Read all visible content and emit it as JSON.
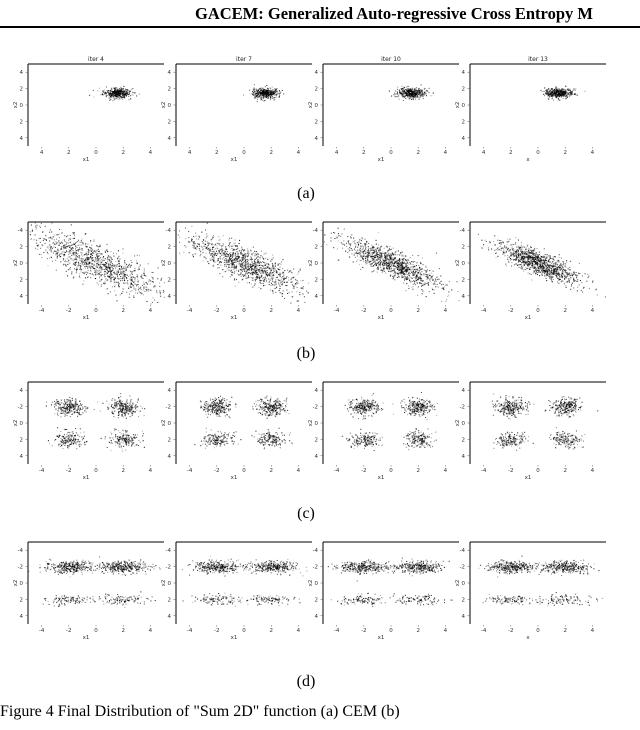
{
  "header": {
    "title": "GACEM: Generalized Auto-regressive Cross Entropy M"
  },
  "figure": {
    "caption": "Figure 4 Final Distribution of \"Sum 2D\" function (a) CEM (b)",
    "columns": [
      {
        "title": "iter 4"
      },
      {
        "title": "iter 7"
      },
      {
        "title": "iter 10"
      },
      {
        "title": "iter 13"
      }
    ],
    "rows": [
      {
        "label": "(a)",
        "xlabels": [
          "x1",
          "x1",
          "x1",
          "x"
        ],
        "ylabels": [
          "x2",
          "x2",
          "x2",
          "x2"
        ],
        "xticks": [
          "4",
          "2",
          "0",
          "2",
          "4"
        ],
        "yticks": [
          "4",
          "2",
          "0",
          "2",
          "4"
        ],
        "show_titles": true
      },
      {
        "label": "(b)",
        "xlabels": [
          "x1",
          "x1",
          "x1",
          "x1"
        ],
        "ylabels": [
          "x2",
          "x2",
          "x2",
          "x2"
        ],
        "xticks": [
          "-4",
          "-2",
          "0",
          "2",
          "4"
        ],
        "yticks": [
          "4",
          "2",
          "0",
          "2",
          "-4"
        ],
        "show_titles": false
      },
      {
        "label": "(c)",
        "xlabels": [
          "x1",
          "x1",
          "x1",
          "x1"
        ],
        "ylabels": [
          "x2",
          "x2",
          "x2",
          "x2"
        ],
        "xticks": [
          "-4",
          "-2",
          "0",
          "2",
          "4"
        ],
        "yticks": [
          "4",
          "2",
          "0",
          "-2",
          "4"
        ],
        "show_titles": false
      },
      {
        "label": "(d)",
        "xlabels": [
          "x1",
          "x1",
          "x1",
          "x"
        ],
        "ylabels": [
          "x2",
          "x2",
          "x2",
          "x2"
        ],
        "xticks": [
          "-4",
          "-2",
          "0",
          "2",
          "4"
        ],
        "yticks": [
          "4",
          "2",
          "0",
          "-2",
          "-4"
        ],
        "show_titles": false
      }
    ]
  },
  "chart_data": [
    {
      "type": "scatter",
      "row": "(a)",
      "xlim": [
        -5,
        5
      ],
      "ylim": [
        -5,
        5
      ],
      "clusters": [
        {
          "x": 1.5,
          "y": 1.5,
          "sx": 0.5,
          "sy": 0.3,
          "rho": 0,
          "n": 420
        }
      ]
    },
    {
      "type": "scatter",
      "row": "(b)",
      "xlim": [
        -5,
        5
      ],
      "ylim": [
        -5,
        5
      ],
      "clusters": [
        {
          "x": 0.0,
          "y": 0.0,
          "sx": 2.4,
          "sy": 2.0,
          "rho": -0.82,
          "n": 1100
        }
      ],
      "focus_per_iteration": [
        1.0,
        0.85,
        0.72,
        0.62
      ]
    },
    {
      "type": "scatter",
      "row": "(c)",
      "xlim": [
        -5,
        5
      ],
      "ylim": [
        -5,
        5
      ],
      "clusters": [
        {
          "x": -2,
          "y": 2,
          "sx": 0.55,
          "sy": 0.5,
          "rho": 0,
          "n": 260
        },
        {
          "x": 2,
          "y": 2,
          "sx": 0.55,
          "sy": 0.5,
          "rho": 0,
          "n": 260
        },
        {
          "x": -2,
          "y": -2,
          "sx": 0.55,
          "sy": 0.5,
          "rho": 0,
          "n": 170
        },
        {
          "x": 2,
          "y": -2,
          "sx": 0.55,
          "sy": 0.5,
          "rho": 0,
          "n": 170
        }
      ]
    },
    {
      "type": "scatter",
      "row": "(d)",
      "xlim": [
        -5,
        5
      ],
      "ylim": [
        -5,
        5
      ],
      "clusters": [
        {
          "x": -2,
          "y": 2,
          "sx": 0.9,
          "sy": 0.35,
          "rho": 0,
          "n": 320
        },
        {
          "x": 2,
          "y": 2,
          "sx": 0.9,
          "sy": 0.35,
          "rho": 0,
          "n": 320
        },
        {
          "x": -2,
          "y": -2,
          "sx": 0.9,
          "sy": 0.3,
          "rho": 0,
          "n": 110
        },
        {
          "x": 2,
          "y": -2,
          "sx": 0.9,
          "sy": 0.3,
          "rho": 0,
          "n": 110
        }
      ]
    }
  ]
}
